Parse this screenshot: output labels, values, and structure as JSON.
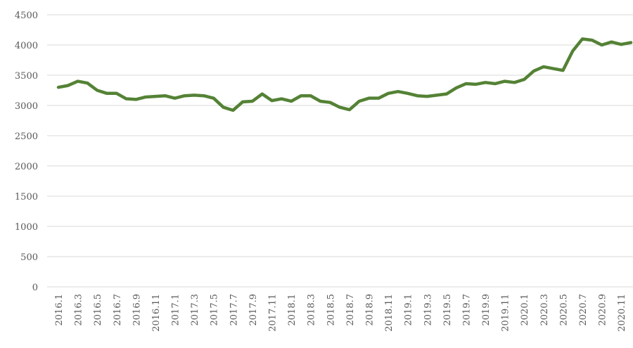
{
  "chart_data": {
    "type": "line",
    "categories": [
      "2016.1",
      null,
      "2016.3",
      null,
      "2016.5",
      null,
      "2016.7",
      null,
      "2016.9",
      null,
      "2016.11",
      null,
      "2017.1",
      null,
      "2017.3",
      null,
      "2017.5",
      null,
      "2017.7",
      null,
      "2017.9",
      null,
      "2017.11",
      null,
      "2018.1",
      null,
      "2018.3",
      null,
      "2018.5",
      null,
      "2018.7",
      null,
      "2018.9",
      null,
      "2018.11",
      null,
      "2019.1",
      null,
      "2019.3",
      null,
      "2019.5",
      null,
      "2019.7",
      null,
      "2019.9",
      null,
      "2019.11",
      null,
      "2020.1",
      null,
      "2020.3",
      null,
      "2020.5",
      null,
      "2020.7",
      null,
      "2020.9",
      null,
      "2020.11",
      null
    ],
    "values": [
      3300,
      3330,
      3400,
      3370,
      3250,
      3200,
      3200,
      3110,
      3100,
      3140,
      3150,
      3160,
      3120,
      3160,
      3170,
      3160,
      3120,
      2970,
      2920,
      3060,
      3070,
      3190,
      3080,
      3110,
      3070,
      3160,
      3160,
      3070,
      3050,
      2970,
      2930,
      3070,
      3120,
      3120,
      3200,
      3230,
      3200,
      3160,
      3150,
      3170,
      3190,
      3290,
      3360,
      3350,
      3380,
      3360,
      3400,
      3380,
      3430,
      3570,
      3640,
      3610,
      3580,
      3900,
      4100,
      4080,
      4000,
      4050,
      4010,
      4040
    ],
    "color": "#548235",
    "ylim": [
      0,
      4500
    ],
    "yticks": [
      0,
      500,
      1000,
      1500,
      2000,
      2500,
      3000,
      3500,
      4000,
      4500
    ],
    "grid": true
  }
}
